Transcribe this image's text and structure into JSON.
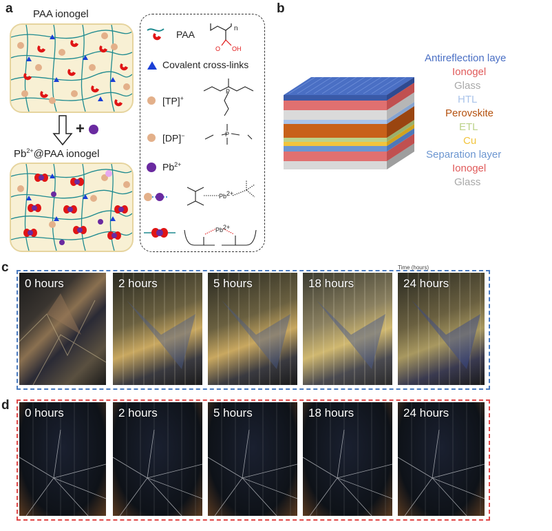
{
  "panel_letters": {
    "a": "a",
    "b": "b",
    "c": "c",
    "d": "d"
  },
  "panel_a": {
    "top_title": "PAA ionogel",
    "bottom_title_prefix": "Pb",
    "bottom_title_sup": "2+",
    "bottom_title_suffix": "@PAA ionogel",
    "plus_symbol": "+",
    "legend": {
      "paa": "PAA",
      "paa_subscript": "n",
      "covalent": "Covalent cross-links",
      "tp": "[TP]",
      "tp_sup": "+",
      "dp": "[DP]",
      "dp_sup": "−",
      "pb": "Pb",
      "pb_sup": "2+",
      "chem_O": "O",
      "chem_OH": "OH",
      "chem_P": "P",
      "chem_Pb": "Pb",
      "chem_Pb_sup": "2+"
    }
  },
  "panel_b": {
    "layers": [
      {
        "label": "Antireflection laye",
        "color": "#4a6fc4"
      },
      {
        "label": "Ionogel",
        "color": "#e05a5a"
      },
      {
        "label": "Glass",
        "color": "#b8b8b8"
      },
      {
        "label": "HTL",
        "color": "#a9c3ea"
      },
      {
        "label": "Perovskite",
        "color": "#b5520f"
      },
      {
        "label": "ETL",
        "color": "#bcd28a"
      },
      {
        "label": "Cu",
        "color": "#f2c43c"
      },
      {
        "label": "Separation layer",
        "color": "#6b95d0"
      },
      {
        "label": "Ionogel",
        "color": "#e05a5a"
      },
      {
        "label": "Glass",
        "color": "#b8b8b8"
      }
    ]
  },
  "panel_c": {
    "faint_caption": "Time (hours)",
    "photos": [
      "0 hours",
      "2 hours",
      "5 hours",
      "18 hours",
      "24 hours"
    ]
  },
  "panel_d": {
    "photos": [
      "0 hours",
      "2 hours",
      "5 hours",
      "18 hours",
      "24 hours"
    ]
  }
}
